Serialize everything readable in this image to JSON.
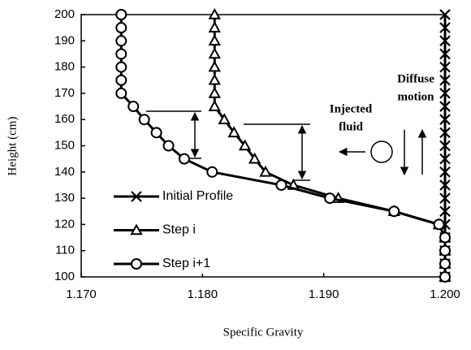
{
  "chart_data": {
    "type": "line",
    "xlabel": "Specific Gravity",
    "ylabel": "Height (cm)",
    "annotations": [
      "Diffuse",
      "motion",
      "Injected",
      "fluid"
    ],
    "xlim": [
      1.17,
      1.2
    ],
    "xticks": [
      {
        "value": 1.17,
        "label": "1.170"
      },
      {
        "value": 1.18,
        "label": "1.180"
      },
      {
        "value": 1.19,
        "label": "1.190"
      },
      {
        "value": 1.2,
        "label": "1.200"
      }
    ],
    "ylim": [
      100,
      200
    ],
    "yticks": [
      100,
      110,
      120,
      130,
      140,
      150,
      160,
      170,
      180,
      190,
      200
    ],
    "grid": false,
    "legend": "lower left",
    "series": [
      {
        "name": "Initial Profile",
        "color": "#000000",
        "marker": "x",
        "x": [
          1.2,
          1.2,
          1.2,
          1.2,
          1.2,
          1.2,
          1.2,
          1.2,
          1.2,
          1.2,
          1.2,
          1.2,
          1.2,
          1.2,
          1.2,
          1.2,
          1.2,
          1.2,
          1.2,
          1.2,
          1.2
        ],
        "values": [
          200,
          195,
          190,
          185,
          180,
          175,
          170,
          165,
          160,
          155,
          150,
          145,
          140,
          135,
          130,
          125,
          120,
          115,
          110,
          105,
          100
        ]
      },
      {
        "name": "Step i",
        "color": "#000000",
        "marker": "triangle",
        "x": [
          1.181,
          1.181,
          1.181,
          1.181,
          1.181,
          1.181,
          1.181,
          1.181,
          1.1818,
          1.1826,
          1.1835,
          1.1843,
          1.1852,
          1.1875,
          1.1912,
          1.1958,
          1.1995,
          1.2,
          1.2,
          1.2,
          1.2
        ],
        "values": [
          200,
          195,
          190,
          185,
          180,
          175,
          170,
          165,
          160,
          155,
          150,
          145,
          140,
          135,
          130,
          125,
          120,
          115,
          110,
          105,
          100
        ]
      },
      {
        "name": "Step i+1",
        "color": "#000000",
        "marker": "circle",
        "x": [
          1.1733,
          1.1733,
          1.1733,
          1.1733,
          1.1733,
          1.1733,
          1.1733,
          1.1743,
          1.1752,
          1.1762,
          1.1772,
          1.1785,
          1.1808,
          1.1865,
          1.1905,
          1.1958,
          1.1995,
          1.2,
          1.2,
          1.2,
          1.2
        ],
        "values": [
          200,
          195,
          190,
          185,
          180,
          175,
          170,
          165,
          160,
          155,
          150,
          145,
          140,
          135,
          130,
          125,
          120,
          115,
          110,
          105,
          100
        ]
      }
    ]
  }
}
